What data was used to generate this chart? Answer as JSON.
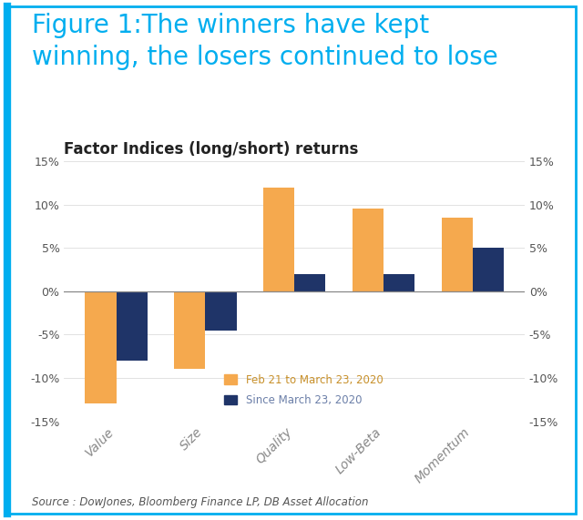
{
  "title_line1": "Figure 1:The winners have kept",
  "title_line2": "winning, the losers continued to lose",
  "chart_title": "Factor Indices (long/short) returns",
  "categories": [
    "Value",
    "Size",
    "Quality",
    "Low-Beta",
    "Momentum"
  ],
  "series1_label": "Feb 21 to March 23, 2020",
  "series2_label": "Since March 23, 2020",
  "series1_values": [
    -13.0,
    -9.0,
    12.0,
    9.5,
    8.5
  ],
  "series2_values": [
    -8.0,
    -4.5,
    2.0,
    2.0,
    5.0
  ],
  "series1_color": "#F5A94E",
  "series2_color": "#1F3468",
  "ylim": [
    -15,
    15
  ],
  "yticks": [
    -15,
    -10,
    -5,
    0,
    5,
    10,
    15
  ],
  "ytick_labels": [
    "-15%",
    "-10%",
    "-5%",
    "0%",
    "5%",
    "10%",
    "15%"
  ],
  "source_text": "Source : DowJones, Bloomberg Finance LP, DB Asset Allocation",
  "title_color": "#00AEEF",
  "border_color": "#00AEEF",
  "background_color": "#FFFFFF",
  "chart_title_fontsize": 12,
  "title_fontsize": 20,
  "bar_width": 0.35,
  "legend_color1": "#C8902A",
  "legend_color2": "#6B7FA8"
}
